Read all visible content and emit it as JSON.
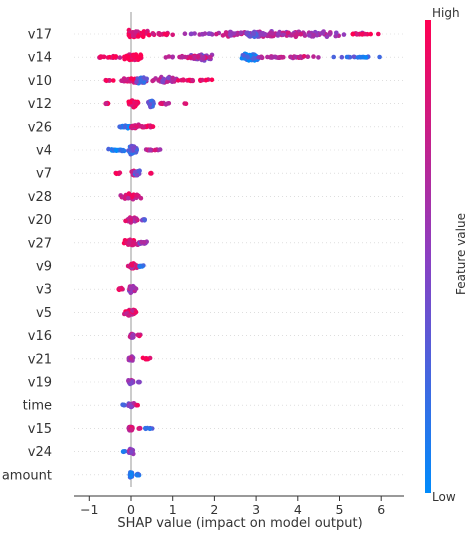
{
  "chart_data": {
    "type": "scatter",
    "subtype": "shap-beeswarm",
    "xlabel": "SHAP value (impact on model output)",
    "xlim": [
      -1.4,
      6.5
    ],
    "xticks": [
      -1,
      0,
      1,
      2,
      3,
      4,
      5,
      6
    ],
    "xtick_labels": [
      "−1",
      "0",
      "1",
      "2",
      "3",
      "4",
      "5",
      "6"
    ],
    "colorbar": {
      "label": "Feature value",
      "high_label": "High",
      "low_label": "Low",
      "high_color": "#ff0052",
      "low_color": "#008bfb"
    },
    "grid": false,
    "features": [
      {
        "name": "v17",
        "spread": [
          -0.05,
          6.1
        ],
        "clusters": [
          {
            "center": 0.15,
            "width": 0.35,
            "count": 60,
            "height": 0.35,
            "hue": 0.9
          },
          {
            "center": 0.7,
            "width": 0.45,
            "count": 18,
            "height": 0.1,
            "hue": 0.9
          },
          {
            "center": 3.5,
            "width": 2.3,
            "count": 140,
            "height": 0.25,
            "hue": 0.65
          },
          {
            "center": 2.95,
            "width": 0.3,
            "count": 40,
            "height": 0.3,
            "hue": 0.4
          },
          {
            "center": 5.5,
            "width": 0.6,
            "count": 18,
            "height": 0.05,
            "hue": 0.95
          },
          {
            "center": 1.8,
            "width": 0.7,
            "count": 10,
            "height": 0.05,
            "hue": 0.5
          }
        ]
      },
      {
        "name": "v14",
        "spread": [
          -1.0,
          6.1
        ],
        "clusters": [
          {
            "center": 0.05,
            "width": 0.3,
            "count": 70,
            "height": 0.3,
            "hue": 0.95
          },
          {
            "center": -0.5,
            "width": 0.5,
            "count": 20,
            "height": 0.1,
            "hue": 0.9
          },
          {
            "center": 1.7,
            "width": 0.3,
            "count": 45,
            "height": 0.28,
            "hue": 0.45
          },
          {
            "center": 1.5,
            "width": 0.8,
            "count": 40,
            "height": 0.15,
            "hue": 0.75
          },
          {
            "center": 2.85,
            "width": 0.25,
            "count": 60,
            "height": 0.4,
            "hue": 0.15
          },
          {
            "center": 3.8,
            "width": 1.0,
            "count": 40,
            "height": 0.1,
            "hue": 0.7
          },
          {
            "center": 5.3,
            "width": 0.8,
            "count": 20,
            "height": 0.05,
            "hue": 0.2
          }
        ]
      },
      {
        "name": "v10",
        "spread": [
          -1.0,
          2.2
        ],
        "clusters": [
          {
            "center": 0.05,
            "width": 0.4,
            "count": 60,
            "height": 0.28,
            "hue": 0.85
          },
          {
            "center": 0.25,
            "width": 0.15,
            "count": 30,
            "height": 0.35,
            "hue": 0.3
          },
          {
            "center": 0.8,
            "width": 0.4,
            "count": 40,
            "height": 0.3,
            "hue": 0.6
          },
          {
            "center": 1.5,
            "width": 0.7,
            "count": 20,
            "height": 0.08,
            "hue": 0.9
          },
          {
            "center": -0.6,
            "width": 0.3,
            "count": 8,
            "height": 0.05,
            "hue": 0.9
          }
        ]
      },
      {
        "name": "v12",
        "spread": [
          -0.7,
          1.4
        ],
        "clusters": [
          {
            "center": 0.05,
            "width": 0.15,
            "count": 40,
            "height": 0.35,
            "hue": 0.9
          },
          {
            "center": 0.5,
            "width": 0.1,
            "count": 30,
            "height": 0.35,
            "hue": 0.3
          },
          {
            "center": 0.8,
            "width": 0.2,
            "count": 8,
            "height": 0.1,
            "hue": 0.8
          },
          {
            "center": -0.6,
            "width": 0.1,
            "count": 6,
            "height": 0.1,
            "hue": 0.9
          },
          {
            "center": 1.3,
            "width": 0.05,
            "count": 2,
            "height": 0.05,
            "hue": 0.9
          }
        ]
      },
      {
        "name": "v26",
        "spread": [
          -0.55,
          0.6
        ],
        "clusters": [
          {
            "center": -0.1,
            "width": 0.3,
            "count": 40,
            "height": 0.15,
            "hue": 0.15
          },
          {
            "center": 0.1,
            "width": 0.15,
            "count": 30,
            "height": 0.25,
            "hue": 0.75
          },
          {
            "center": 0.4,
            "width": 0.2,
            "count": 15,
            "height": 0.15,
            "hue": 0.9
          }
        ]
      },
      {
        "name": "v4",
        "spread": [
          -0.6,
          0.8
        ],
        "clusters": [
          {
            "center": 0.05,
            "width": 0.15,
            "count": 60,
            "height": 0.38,
            "hue": 0.3
          },
          {
            "center": -0.3,
            "width": 0.3,
            "count": 20,
            "height": 0.12,
            "hue": 0.1
          },
          {
            "center": 0.5,
            "width": 0.25,
            "count": 15,
            "height": 0.1,
            "hue": 0.7
          }
        ]
      },
      {
        "name": "v7",
        "spread": [
          -0.5,
          0.55
        ],
        "clusters": [
          {
            "center": 0.08,
            "width": 0.12,
            "count": 40,
            "height": 0.32,
            "hue": 0.85
          },
          {
            "center": 0.15,
            "width": 0.07,
            "count": 15,
            "height": 0.3,
            "hue": 0.3
          },
          {
            "center": -0.3,
            "width": 0.1,
            "count": 5,
            "height": 0.1,
            "hue": 0.9
          },
          {
            "center": 0.45,
            "width": 0.08,
            "count": 4,
            "height": 0.05,
            "hue": 0.9
          }
        ]
      },
      {
        "name": "v28",
        "spread": [
          -0.4,
          0.4
        ],
        "clusters": [
          {
            "center": 0.0,
            "width": 0.3,
            "count": 50,
            "height": 0.28,
            "hue": 0.8
          }
        ]
      },
      {
        "name": "v20",
        "spread": [
          -0.25,
          0.4
        ],
        "clusters": [
          {
            "center": 0.05,
            "width": 0.2,
            "count": 40,
            "height": 0.28,
            "hue": 0.75
          },
          {
            "center": 0.3,
            "width": 0.08,
            "count": 6,
            "height": 0.1,
            "hue": 0.4
          }
        ]
      },
      {
        "name": "v27",
        "spread": [
          -0.3,
          0.55
        ],
        "clusters": [
          {
            "center": 0.0,
            "width": 0.25,
            "count": 50,
            "height": 0.3,
            "hue": 0.85
          },
          {
            "center": 0.3,
            "width": 0.12,
            "count": 15,
            "height": 0.15,
            "hue": 0.5
          }
        ]
      },
      {
        "name": "v9",
        "spread": [
          -0.2,
          0.35
        ],
        "clusters": [
          {
            "center": 0.05,
            "width": 0.15,
            "count": 40,
            "height": 0.25,
            "hue": 0.75
          },
          {
            "center": 0.25,
            "width": 0.08,
            "count": 6,
            "height": 0.1,
            "hue": 0.2
          }
        ]
      },
      {
        "name": "v3",
        "spread": [
          -0.4,
          0.2
        ],
        "clusters": [
          {
            "center": 0.02,
            "width": 0.12,
            "count": 45,
            "height": 0.32,
            "hue": 0.6
          },
          {
            "center": -0.25,
            "width": 0.12,
            "count": 8,
            "height": 0.1,
            "hue": 0.9
          }
        ]
      },
      {
        "name": "v5",
        "spread": [
          -0.3,
          0.3
        ],
        "clusters": [
          {
            "center": 0.0,
            "width": 0.22,
            "count": 50,
            "height": 0.3,
            "hue": 0.85
          }
        ]
      },
      {
        "name": "v16",
        "spread": [
          -0.1,
          0.25
        ],
        "clusters": [
          {
            "center": 0.02,
            "width": 0.06,
            "count": 30,
            "height": 0.25,
            "hue": 0.65
          },
          {
            "center": 0.18,
            "width": 0.06,
            "count": 6,
            "height": 0.12,
            "hue": 0.9
          }
        ]
      },
      {
        "name": "v21",
        "spread": [
          -0.1,
          0.55
        ],
        "clusters": [
          {
            "center": 0.0,
            "width": 0.07,
            "count": 35,
            "height": 0.25,
            "hue": 0.6
          },
          {
            "center": 0.35,
            "width": 0.15,
            "count": 10,
            "height": 0.1,
            "hue": 0.9
          }
        ]
      },
      {
        "name": "v19",
        "spread": [
          -0.1,
          0.25
        ],
        "clusters": [
          {
            "center": 0.0,
            "width": 0.08,
            "count": 35,
            "height": 0.22,
            "hue": 0.55
          },
          {
            "center": 0.18,
            "width": 0.06,
            "count": 4,
            "height": 0.05,
            "hue": 0.5
          }
        ]
      },
      {
        "name": "time",
        "spread": [
          -0.25,
          0.2
        ],
        "clusters": [
          {
            "center": 0.0,
            "width": 0.08,
            "count": 35,
            "height": 0.2,
            "hue": 0.5
          },
          {
            "center": -0.18,
            "width": 0.06,
            "count": 5,
            "height": 0.05,
            "hue": 0.2
          },
          {
            "center": 0.15,
            "width": 0.04,
            "count": 3,
            "height": 0.05,
            "hue": 0.9
          }
        ]
      },
      {
        "name": "v15",
        "spread": [
          -0.1,
          0.85
        ],
        "clusters": [
          {
            "center": 0.0,
            "width": 0.08,
            "count": 40,
            "height": 0.28,
            "hue": 0.8
          },
          {
            "center": 0.5,
            "width": 0.3,
            "count": 8,
            "height": 0.05,
            "hue": 0.3
          },
          {
            "center": 0.2,
            "width": 0.06,
            "count": 6,
            "height": 0.05,
            "hue": 0.9
          }
        ]
      },
      {
        "name": "v24",
        "spread": [
          -0.25,
          0.2
        ],
        "clusters": [
          {
            "center": 0.0,
            "width": 0.08,
            "count": 35,
            "height": 0.28,
            "hue": 0.55
          },
          {
            "center": -0.18,
            "width": 0.04,
            "count": 4,
            "height": 0.05,
            "hue": 0.2
          }
        ]
      },
      {
        "name": "amount",
        "spread": [
          -0.05,
          0.3
        ],
        "clusters": [
          {
            "center": 0.0,
            "width": 0.04,
            "count": 35,
            "height": 0.3,
            "hue": 0.2
          },
          {
            "center": 0.15,
            "width": 0.1,
            "count": 10,
            "height": 0.08,
            "hue": 0.1
          }
        ]
      }
    ]
  }
}
